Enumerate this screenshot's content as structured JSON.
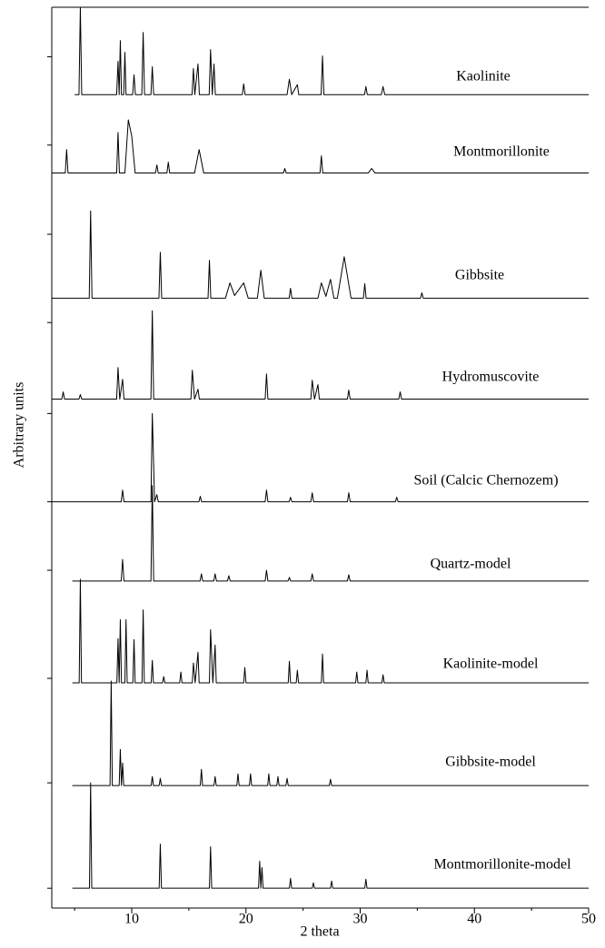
{
  "chart_data": {
    "type": "line",
    "x_label": "2 theta",
    "y_label": "Arbitrary units",
    "xlim": [
      3,
      50
    ],
    "xticks": [
      10,
      20,
      30,
      40,
      50
    ],
    "xminorticks": [
      5,
      15,
      25,
      35,
      45
    ],
    "ylim": [
      0,
      100
    ],
    "yticks": [
      94.5,
      84.7,
      74.8,
      65.0,
      54.9,
      45.1,
      37.5,
      25.5,
      13.9,
      2.2
    ],
    "grid": false,
    "series": [
      {
        "name": "Kaolinite",
        "color": "#000000",
        "x": [
          5.0,
          5.38,
          5.5,
          5.62,
          8.68,
          8.8,
          8.9,
          9.0,
          9.1,
          9.3,
          9.4,
          9.5,
          10.08,
          10.2,
          10.32,
          10.88,
          11.0,
          11.12,
          11.68,
          11.8,
          11.92,
          15.28,
          15.4,
          15.52,
          15.8,
          15.92,
          16.78,
          16.9,
          17.05,
          17.2,
          17.32,
          19.68,
          19.8,
          19.92,
          23.6,
          23.8,
          24.0,
          24.5,
          24.62,
          26.58,
          26.7,
          26.82,
          30.38,
          30.5,
          30.62,
          31.85,
          32.0,
          32.15,
          50
        ],
        "values": [
          90.3,
          90.3,
          100,
          90.3,
          90.3,
          94.0,
          90.3,
          96.3,
          90.3,
          90.3,
          95.0,
          90.3,
          90.3,
          92.5,
          90.3,
          90.3,
          97.2,
          90.3,
          90.3,
          93.4,
          90.3,
          90.3,
          93.2,
          90.3,
          93.7,
          90.3,
          90.3,
          95.3,
          90.3,
          93.7,
          90.3,
          90.3,
          91.5,
          90.3,
          90.3,
          92.0,
          90.3,
          91.4,
          90.3,
          90.3,
          94.6,
          90.3,
          90.3,
          91.2,
          90.3,
          90.3,
          91.2,
          90.3,
          90.3
        ]
      },
      {
        "name": "Montmorillonite",
        "color": "#000000",
        "x": [
          3.0,
          4.18,
          4.3,
          4.42,
          8.68,
          8.8,
          8.92,
          9.4,
          9.7,
          10.0,
          10.3,
          12.08,
          12.2,
          12.32,
          13.08,
          13.2,
          13.32,
          15.5,
          15.9,
          16.3,
          23.28,
          23.4,
          23.52,
          26.48,
          26.6,
          26.72,
          30.7,
          31.0,
          31.3,
          50
        ],
        "values": [
          81.6,
          81.6,
          84.2,
          81.6,
          81.6,
          86.1,
          81.6,
          81.6,
          87.5,
          85.7,
          81.6,
          81.6,
          82.5,
          81.6,
          81.6,
          82.8,
          81.6,
          81.6,
          84.2,
          81.6,
          81.6,
          82.1,
          81.6,
          81.6,
          83.5,
          81.6,
          81.6,
          82.1,
          81.6,
          81.6
        ]
      },
      {
        "name": "Gibbsite",
        "color": "#000000",
        "x": [
          3.0,
          6.28,
          6.4,
          6.52,
          12.38,
          12.5,
          12.62,
          16.68,
          16.8,
          16.92,
          18.2,
          18.6,
          19.0,
          19.8,
          20.2,
          21.0,
          21.3,
          21.6,
          23.78,
          23.9,
          24.02,
          26.3,
          26.6,
          27.0,
          27.4,
          27.7,
          28.0,
          28.6,
          29.2,
          30.28,
          30.4,
          30.52,
          35.28,
          35.4,
          35.52,
          50
        ],
        "values": [
          67.7,
          67.7,
          77.4,
          67.7,
          67.7,
          72.8,
          67.7,
          67.7,
          71.9,
          67.7,
          67.7,
          69.4,
          68.0,
          69.4,
          67.7,
          67.7,
          70.8,
          67.7,
          67.7,
          68.8,
          67.7,
          67.7,
          69.4,
          67.9,
          69.8,
          67.7,
          67.7,
          72.3,
          67.7,
          67.7,
          69.3,
          67.7,
          67.7,
          68.3,
          67.7,
          67.7
        ]
      },
      {
        "name": "Hydromuscovite",
        "color": "#000000",
        "x": [
          3.0,
          3.88,
          4.0,
          4.12,
          5.38,
          5.5,
          5.62,
          8.68,
          8.8,
          8.95,
          9.2,
          9.32,
          11.68,
          11.8,
          11.92,
          15.18,
          15.3,
          15.5,
          15.8,
          15.92,
          21.68,
          21.8,
          21.92,
          25.68,
          25.8,
          26.0,
          26.3,
          26.42,
          28.88,
          29.0,
          29.12,
          33.38,
          33.5,
          33.62,
          50
        ],
        "values": [
          56.5,
          56.5,
          57.3,
          56.5,
          56.5,
          57.0,
          56.5,
          56.5,
          60.0,
          56.5,
          58.7,
          56.5,
          56.5,
          66.3,
          56.5,
          56.5,
          59.7,
          56.5,
          57.6,
          56.5,
          56.5,
          59.3,
          56.5,
          56.5,
          58.6,
          56.5,
          58.1,
          56.5,
          56.5,
          57.5,
          56.5,
          56.5,
          57.3,
          56.5,
          56.5
        ]
      },
      {
        "name": "Soil (Calcic Chernozem)",
        "color": "#000000",
        "x": [
          3.0,
          9.08,
          9.2,
          9.32,
          11.68,
          11.8,
          12.0,
          12.2,
          12.32,
          15.88,
          16.0,
          16.12,
          21.68,
          21.8,
          21.92,
          23.78,
          23.9,
          24.02,
          25.68,
          25.8,
          25.92,
          28.88,
          29.0,
          29.12,
          33.08,
          33.2,
          33.32,
          50
        ],
        "values": [
          45.1,
          45.1,
          46.4,
          45.1,
          45.1,
          54.9,
          45.1,
          45.9,
          45.1,
          45.1,
          45.7,
          45.1,
          45.1,
          46.4,
          45.1,
          45.1,
          45.6,
          45.1,
          45.1,
          46.1,
          45.1,
          45.1,
          46.1,
          45.1,
          45.1,
          45.6,
          45.1,
          45.1
        ]
      },
      {
        "name": "Quartz-model",
        "color": "#000000",
        "x": [
          4.8,
          9.08,
          9.2,
          9.32,
          11.68,
          11.8,
          11.92,
          15.98,
          16.1,
          16.22,
          17.18,
          17.3,
          17.42,
          18.38,
          18.5,
          18.62,
          21.68,
          21.8,
          21.92,
          23.68,
          23.8,
          23.92,
          25.68,
          25.8,
          25.92,
          28.88,
          29.0,
          29.12,
          50
        ],
        "values": [
          36.3,
          36.3,
          38.7,
          36.3,
          36.3,
          46.9,
          36.3,
          36.3,
          37.1,
          36.3,
          36.3,
          37.1,
          36.3,
          36.3,
          36.9,
          36.3,
          36.3,
          37.5,
          36.3,
          36.3,
          36.7,
          36.3,
          36.3,
          37.1,
          36.3,
          36.3,
          37.0,
          36.3,
          36.3
        ]
      },
      {
        "name": "Kaolinite-model",
        "color": "#000000",
        "x": [
          4.8,
          5.4,
          5.5,
          5.6,
          8.7,
          8.8,
          8.9,
          9.0,
          9.1,
          9.4,
          9.5,
          9.6,
          10.1,
          10.2,
          10.3,
          10.9,
          11.0,
          11.1,
          11.7,
          11.8,
          11.9,
          12.7,
          12.8,
          12.9,
          14.2,
          14.3,
          14.4,
          15.3,
          15.4,
          15.55,
          15.8,
          15.9,
          16.8,
          16.9,
          17.1,
          17.3,
          17.4,
          19.8,
          19.9,
          20.0,
          23.7,
          23.8,
          23.9,
          24.4,
          24.5,
          24.6,
          26.6,
          26.7,
          26.8,
          29.6,
          29.7,
          29.8,
          30.5,
          30.6,
          30.7,
          31.9,
          32.0,
          32.1,
          50
        ],
        "values": [
          25.0,
          25.0,
          36.5,
          25.0,
          25.0,
          29.9,
          25.0,
          32.0,
          25.0,
          25.0,
          32.0,
          25.0,
          25.0,
          29.8,
          25.0,
          25.0,
          33.1,
          25.0,
          25.0,
          27.5,
          25.0,
          25.0,
          25.7,
          25.0,
          25.0,
          26.2,
          25.0,
          25.0,
          27.2,
          25.0,
          28.4,
          25.0,
          25.0,
          30.9,
          25.0,
          29.2,
          25.0,
          25.0,
          26.7,
          25.0,
          25.0,
          27.4,
          25.0,
          25.0,
          26.4,
          25.0,
          25.0,
          28.2,
          25.0,
          25.0,
          26.2,
          25.0,
          25.0,
          26.4,
          25.0,
          25.0,
          25.9,
          25.0,
          25.0
        ]
      },
      {
        "name": "Gibbsite-model",
        "color": "#000000",
        "x": [
          4.8,
          8.1,
          8.2,
          8.3,
          8.9,
          9.0,
          9.1,
          9.2,
          9.3,
          11.7,
          11.8,
          11.9,
          12.4,
          12.5,
          12.6,
          16.0,
          16.1,
          16.2,
          17.2,
          17.3,
          17.4,
          19.2,
          19.3,
          19.4,
          20.3,
          20.4,
          20.5,
          21.9,
          22.0,
          22.1,
          22.7,
          22.8,
          22.9,
          23.5,
          23.6,
          23.7,
          27.3,
          27.4,
          27.5,
          50
        ],
        "values": [
          13.6,
          13.6,
          25.2,
          13.6,
          13.6,
          17.6,
          13.6,
          16.1,
          13.6,
          13.6,
          14.6,
          13.6,
          13.6,
          14.4,
          13.6,
          13.6,
          15.4,
          13.6,
          13.6,
          14.6,
          13.6,
          13.6,
          14.9,
          13.6,
          13.6,
          14.9,
          13.6,
          13.6,
          14.9,
          13.6,
          13.6,
          14.6,
          13.6,
          13.6,
          14.4,
          13.6,
          13.6,
          14.3,
          13.6,
          13.6
        ]
      },
      {
        "name": "Montmorillonite-model",
        "color": "#000000",
        "x": [
          4.8,
          6.3,
          6.4,
          6.5,
          12.4,
          12.5,
          12.6,
          16.8,
          16.9,
          17.0,
          21.1,
          21.2,
          21.3,
          21.4,
          21.5,
          23.8,
          23.9,
          24.0,
          25.8,
          25.9,
          26.0,
          27.4,
          27.5,
          27.6,
          30.4,
          30.5,
          30.6,
          50
        ],
        "values": [
          2.2,
          2.2,
          13.9,
          2.2,
          2.2,
          7.1,
          2.2,
          2.2,
          6.8,
          2.2,
          2.2,
          5.2,
          2.2,
          4.5,
          2.2,
          2.2,
          3.3,
          2.2,
          2.2,
          2.8,
          2.2,
          2.2,
          3.0,
          2.2,
          2.2,
          3.2,
          2.2,
          2.2
        ]
      }
    ]
  }
}
